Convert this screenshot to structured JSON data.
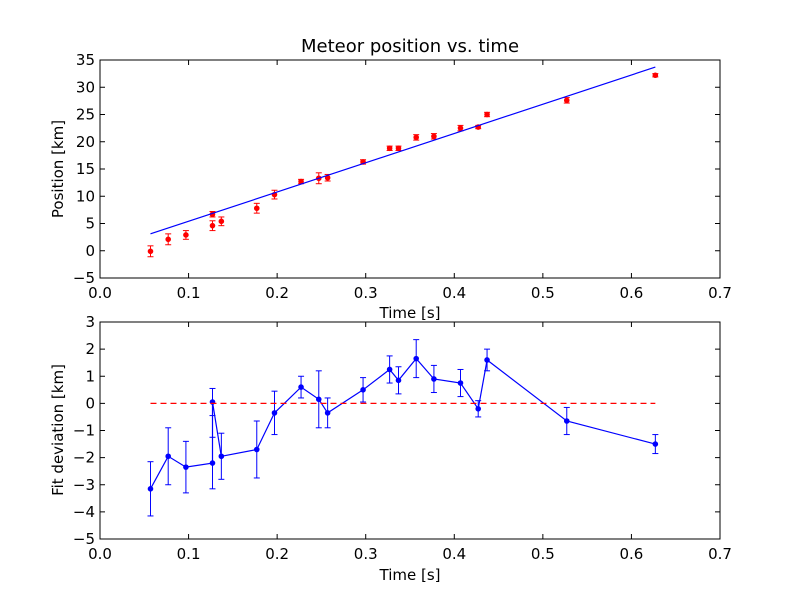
{
  "chart_data": [
    {
      "type": "scatter",
      "title": "Meteor position vs. time",
      "xlabel": "Time [s]",
      "ylabel": "Position [km]",
      "xlim": [
        0.0,
        0.7
      ],
      "ylim": [
        -5,
        35
      ],
      "xticks": [
        "0.0",
        "0.1",
        "0.2",
        "0.3",
        "0.4",
        "0.5",
        "0.6",
        "0.7"
      ],
      "yticks": [
        "−5",
        "0",
        "5",
        "10",
        "15",
        "20",
        "25",
        "30",
        "35"
      ],
      "xtick_values": [
        0.0,
        0.1,
        0.2,
        0.3,
        0.4,
        0.5,
        0.6,
        0.7
      ],
      "ytick_values": [
        -5,
        0,
        5,
        10,
        15,
        20,
        25,
        30,
        35
      ],
      "grid": false,
      "series": [
        {
          "kind": "errorbar-points",
          "color": "#ff0000",
          "x": [
            0.057,
            0.077,
            0.097,
            0.127,
            0.127,
            0.137,
            0.177,
            0.197,
            0.227,
            0.247,
            0.257,
            0.297,
            0.327,
            0.337,
            0.357,
            0.377,
            0.407,
            0.427,
            0.437,
            0.527,
            0.627
          ],
          "y": [
            -0.1,
            2.1,
            2.9,
            4.6,
            6.7,
            5.4,
            7.8,
            10.3,
            12.7,
            13.3,
            13.4,
            16.3,
            18.8,
            18.8,
            20.8,
            21.0,
            22.5,
            22.7,
            25.0,
            27.6,
            32.2
          ],
          "err": [
            1.0,
            1.0,
            0.8,
            0.9,
            0.5,
            0.8,
            0.9,
            0.8,
            0.4,
            1.0,
            0.6,
            0.4,
            0.4,
            0.4,
            0.5,
            0.5,
            0.5,
            0.3,
            0.4,
            0.5,
            0.3
          ]
        },
        {
          "kind": "fit-line",
          "color": "#0000ff",
          "x": [
            0.057,
            0.627
          ],
          "y": [
            3.1,
            33.7
          ]
        }
      ]
    },
    {
      "type": "line",
      "title": "",
      "xlabel": "Time [s]",
      "ylabel": "Fit deviation [km]",
      "xlim": [
        0.0,
        0.7
      ],
      "ylim": [
        -5,
        3
      ],
      "xticks": [
        "0.0",
        "0.1",
        "0.2",
        "0.3",
        "0.4",
        "0.5",
        "0.6",
        "0.7"
      ],
      "yticks": [
        "−5",
        "−4",
        "−3",
        "−2",
        "−1",
        "0",
        "1",
        "2",
        "3"
      ],
      "xtick_values": [
        0.0,
        0.1,
        0.2,
        0.3,
        0.4,
        0.5,
        0.6,
        0.7
      ],
      "ytick_values": [
        -5,
        -4,
        -3,
        -2,
        -1,
        0,
        1,
        2,
        3
      ],
      "grid": false,
      "series": [
        {
          "kind": "errorbar-line",
          "color": "#0000ff",
          "x": [
            0.057,
            0.077,
            0.097,
            0.127,
            0.127,
            0.137,
            0.177,
            0.197,
            0.227,
            0.247,
            0.257,
            0.297,
            0.327,
            0.337,
            0.357,
            0.377,
            0.407,
            0.427,
            0.437,
            0.527,
            0.627
          ],
          "y": [
            -3.15,
            -1.95,
            -2.35,
            -2.2,
            0.05,
            -1.95,
            -1.7,
            -0.35,
            0.6,
            0.15,
            -0.35,
            0.5,
            1.25,
            0.85,
            1.65,
            0.9,
            0.75,
            -0.2,
            1.6,
            -0.65,
            -1.5
          ],
          "err": [
            1.0,
            1.05,
            0.95,
            0.95,
            0.5,
            0.85,
            1.05,
            0.8,
            0.4,
            1.05,
            0.55,
            0.45,
            0.5,
            0.5,
            0.7,
            0.5,
            0.5,
            0.3,
            0.4,
            0.5,
            0.35
          ]
        },
        {
          "kind": "zero-line",
          "color": "#ff0000",
          "dashed": true,
          "x": [
            0.057,
            0.627
          ],
          "y": [
            0,
            0
          ]
        }
      ]
    }
  ]
}
